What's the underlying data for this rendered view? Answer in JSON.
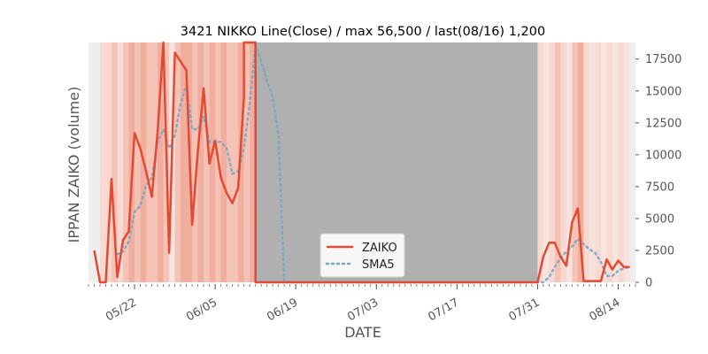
{
  "chart_data": {
    "type": "line",
    "title": "3421 NIKKO Line(Close) / max 56,500 / last(08/16) 1,200",
    "xlabel": "DATE",
    "ylabel": "IPPAN ZAIKO (volume)",
    "x_ticks": [
      {
        "date": "05/22",
        "label": "05/22"
      },
      {
        "date": "06/05",
        "label": "06/05"
      },
      {
        "date": "06/19",
        "label": "06/19"
      },
      {
        "date": "07/03",
        "label": "07/03"
      },
      {
        "date": "07/17",
        "label": "07/17"
      },
      {
        "date": "07/31",
        "label": "07/31"
      },
      {
        "date": "08/14",
        "label": "08/14"
      }
    ],
    "xlim": [
      "05/14",
      "08/17"
    ],
    "ylim": [
      0,
      18800
    ],
    "y_ticks": [
      0,
      2500,
      5000,
      7500,
      10000,
      12500,
      15000,
      17500
    ],
    "y_tick_labels": [
      "0",
      "2500",
      "5000",
      "7500",
      "10000",
      "12500",
      "15000",
      "17500"
    ],
    "y_axis_side": "right",
    "grid": false,
    "legend_position": "bottom-center",
    "series": [
      {
        "name": "ZAIKO",
        "color": "#e24a33",
        "style": "solid",
        "points": [
          [
            "05/15",
            2500
          ],
          [
            "05/16",
            0
          ],
          [
            "05/17",
            0
          ],
          [
            "05/18",
            8100
          ],
          [
            "05/19",
            400
          ],
          [
            "05/20",
            3300
          ],
          [
            "05/21",
            4000
          ],
          [
            "05/22",
            11700
          ],
          [
            "05/23",
            10500
          ],
          [
            "05/24",
            8700
          ],
          [
            "05/25",
            6700
          ],
          [
            "05/26",
            11800
          ],
          [
            "05/27",
            18800
          ],
          [
            "05/28",
            2300
          ],
          [
            "05/29",
            18000
          ],
          [
            "05/30",
            17300
          ],
          [
            "05/31",
            16600
          ],
          [
            "06/01",
            4500
          ],
          [
            "06/02",
            10300
          ],
          [
            "06/03",
            15200
          ],
          [
            "06/04",
            9300
          ],
          [
            "06/05",
            11100
          ],
          [
            "06/06",
            8200
          ],
          [
            "06/07",
            7000
          ],
          [
            "06/08",
            6200
          ],
          [
            "06/09",
            7400
          ],
          [
            "06/10",
            14500
          ],
          [
            "06/10",
            18800
          ],
          [
            "06/12",
            18800
          ],
          [
            "06/12",
            0
          ],
          [
            "07/31",
            0
          ],
          [
            "08/01",
            2000
          ],
          [
            "08/02",
            3100
          ],
          [
            "08/03",
            3100
          ],
          [
            "08/04",
            2000
          ],
          [
            "08/05",
            1300
          ],
          [
            "08/06",
            4700
          ],
          [
            "08/07",
            5800
          ],
          [
            "08/08",
            100
          ],
          [
            "08/09",
            100
          ],
          [
            "08/10",
            100
          ],
          [
            "08/11",
            100
          ],
          [
            "08/12",
            1800
          ],
          [
            "08/13",
            1000
          ],
          [
            "08/14",
            1700
          ],
          [
            "08/15",
            1200
          ],
          [
            "08/16",
            1200
          ]
        ]
      },
      {
        "name": "SMA5",
        "color": "#7aa6c2",
        "style": "dotted",
        "points": [
          [
            "05/19",
            2200
          ],
          [
            "05/20",
            2400
          ],
          [
            "05/21",
            3200
          ],
          [
            "05/22",
            5500
          ],
          [
            "05/23",
            6000
          ],
          [
            "05/24",
            7600
          ],
          [
            "05/25",
            8200
          ],
          [
            "05/26",
            11000
          ],
          [
            "05/27",
            12000
          ],
          [
            "05/28",
            10500
          ],
          [
            "05/29",
            11500
          ],
          [
            "05/30",
            14000
          ],
          [
            "05/31",
            15500
          ],
          [
            "06/01",
            12000
          ],
          [
            "06/02",
            12000
          ],
          [
            "06/03",
            13000
          ],
          [
            "06/04",
            11000
          ],
          [
            "06/05",
            11000
          ],
          [
            "06/06",
            11000
          ],
          [
            "06/07",
            10500
          ],
          [
            "06/08",
            8500
          ],
          [
            "06/09",
            8700
          ],
          [
            "06/10",
            10500
          ],
          [
            "06/11",
            14000
          ],
          [
            "06/12",
            18600
          ],
          [
            "06/13",
            17300
          ],
          [
            "06/14",
            15800
          ],
          [
            "06/15",
            14500
          ],
          [
            "06/16",
            11500
          ],
          [
            "06/17",
            0
          ],
          [
            "08/01",
            0
          ],
          [
            "08/02",
            400
          ],
          [
            "08/03",
            1200
          ],
          [
            "08/04",
            1900
          ],
          [
            "08/05",
            2400
          ],
          [
            "08/06",
            2800
          ],
          [
            "08/07",
            3400
          ],
          [
            "08/08",
            3000
          ],
          [
            "08/09",
            2600
          ],
          [
            "08/10",
            2300
          ],
          [
            "08/11",
            1600
          ],
          [
            "08/12",
            500
          ],
          [
            "08/13",
            500
          ],
          [
            "08/14",
            900
          ],
          [
            "08/15",
            1100
          ],
          [
            "08/16",
            1200
          ]
        ]
      }
    ],
    "missing_data_range": {
      "start": "06/12",
      "end": "07/31",
      "color": "#b0b0b0"
    },
    "background_heat": {
      "colors": [
        "#f8d9d1",
        "#f5c3b6",
        "#f0ae9e",
        "#f8e4de",
        "#eeeeee"
      ],
      "bands": [
        [
          "05/14",
          4
        ],
        [
          "05/15",
          4
        ],
        [
          "05/16",
          0
        ],
        [
          "05/17",
          0
        ],
        [
          "05/18",
          1
        ],
        [
          "05/19",
          0
        ],
        [
          "05/20",
          1
        ],
        [
          "05/21",
          2
        ],
        [
          "05/22",
          1
        ],
        [
          "05/23",
          2
        ],
        [
          "05/24",
          1
        ],
        [
          "05/25",
          1
        ],
        [
          "05/26",
          2
        ],
        [
          "05/27",
          1
        ],
        [
          "05/28",
          3
        ],
        [
          "05/29",
          1
        ],
        [
          "05/30",
          2
        ],
        [
          "05/31",
          2
        ],
        [
          "06/01",
          1
        ],
        [
          "06/02",
          2
        ],
        [
          "06/03",
          1
        ],
        [
          "06/04",
          2
        ],
        [
          "06/05",
          1
        ],
        [
          "06/06",
          2
        ],
        [
          "06/07",
          1
        ],
        [
          "06/08",
          1
        ],
        [
          "06/09",
          2
        ],
        [
          "06/10",
          1
        ],
        [
          "06/11",
          2
        ],
        [
          "07/31",
          0
        ],
        [
          "08/01",
          3
        ],
        [
          "08/02",
          0
        ],
        [
          "08/03",
          1
        ],
        [
          "08/04",
          0
        ],
        [
          "08/05",
          3
        ],
        [
          "08/06",
          1
        ],
        [
          "08/07",
          2
        ],
        [
          "08/08",
          0
        ],
        [
          "08/09",
          3
        ],
        [
          "08/10",
          0
        ],
        [
          "08/11",
          3
        ],
        [
          "08/12",
          0
        ],
        [
          "08/13",
          3
        ],
        [
          "08/14",
          0
        ],
        [
          "08/15",
          3
        ],
        [
          "08/16",
          4
        ]
      ]
    }
  }
}
